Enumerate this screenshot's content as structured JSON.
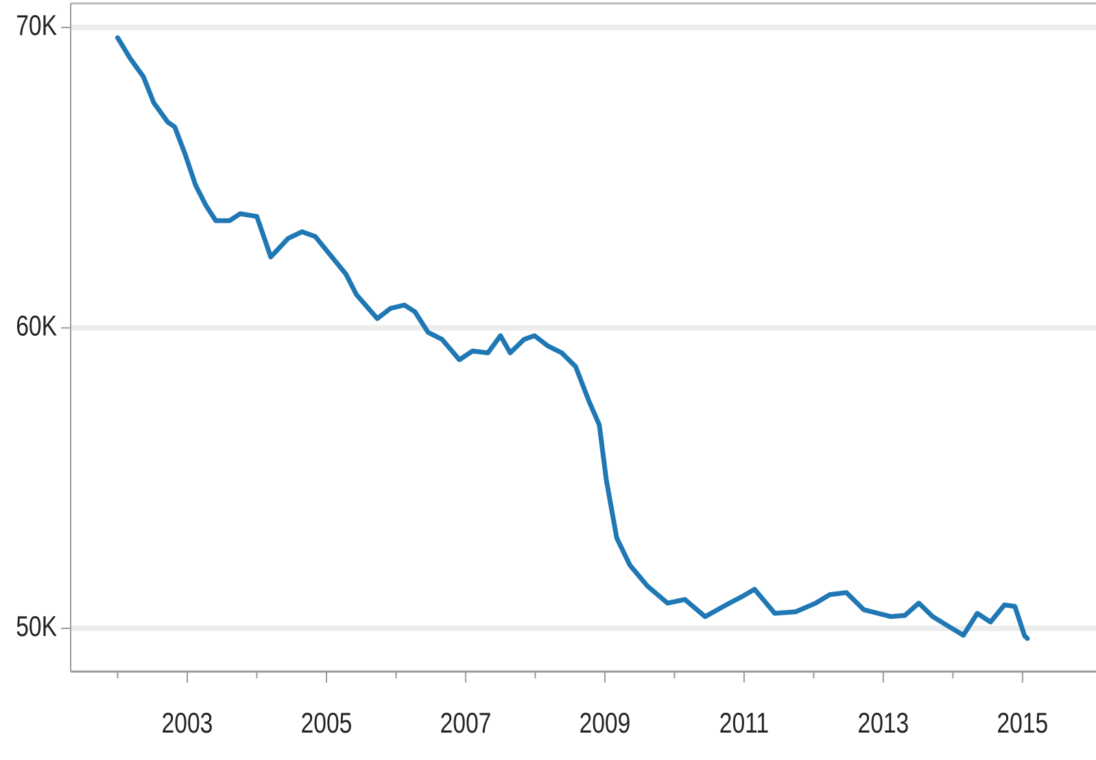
{
  "chart_data": {
    "type": "line",
    "x": [
      2002.0,
      2002.18,
      2002.37,
      2002.52,
      2002.72,
      2002.82,
      2002.97,
      2003.12,
      2003.27,
      2003.41,
      2003.61,
      2003.76,
      2004.0,
      2004.2,
      2004.45,
      2004.65,
      2004.84,
      2005.04,
      2005.28,
      2005.43,
      2005.73,
      2005.92,
      2006.12,
      2006.27,
      2006.46,
      2006.66,
      2006.91,
      2007.1,
      2007.32,
      2007.5,
      2007.64,
      2007.84,
      2007.99,
      2008.18,
      2008.38,
      2008.58,
      2008.77,
      2008.92,
      2009.02,
      2009.17,
      2009.36,
      2009.61,
      2009.9,
      2010.15,
      2010.44,
      2010.79,
      2010.98,
      2011.15,
      2011.44,
      2011.74,
      2012.03,
      2012.23,
      2012.47,
      2012.72,
      2013.11,
      2013.31,
      2013.51,
      2013.71,
      2013.95,
      2014.15,
      2014.35,
      2014.54,
      2014.74,
      2014.89,
      2015.03,
      2015.07
    ],
    "series": [
      {
        "color": "#1f77b4",
        "values": [
          69660,
          68970,
          68360,
          67490,
          66850,
          66690,
          65780,
          64750,
          64070,
          63570,
          63570,
          63800,
          63710,
          62360,
          62980,
          63200,
          63040,
          62470,
          61790,
          61110,
          60310,
          60650,
          60760,
          60540,
          59850,
          59620,
          58940,
          59230,
          59170,
          59740,
          59170,
          59620,
          59740,
          59400,
          59170,
          58710,
          57570,
          56770,
          54950,
          53010,
          52100,
          51410,
          50840,
          50960,
          50390,
          50840,
          51070,
          51300,
          50500,
          50550,
          50840,
          51120,
          51190,
          50620,
          50390,
          50430,
          50840,
          50390,
          50050,
          49770,
          50500,
          50210,
          50780,
          50730,
          49750,
          49660
        ]
      }
    ],
    "xlim": [
      2001.325,
      2015.76
    ],
    "ylim": [
      48560,
      70800
    ],
    "xticks": [
      2003,
      2005,
      2007,
      2009,
      2011,
      2013,
      2015
    ],
    "xminorticks": [
      2002,
      2004,
      2006,
      2008,
      2010,
      2012,
      2014
    ],
    "yticks": [
      {
        "value": 50000,
        "label": "50K"
      },
      {
        "value": 60000,
        "label": "60K"
      },
      {
        "value": 70000,
        "label": "70K"
      }
    ],
    "grid": true
  }
}
